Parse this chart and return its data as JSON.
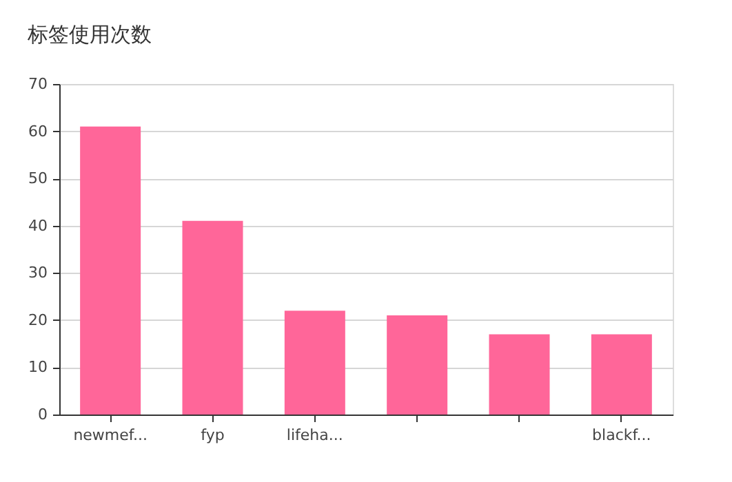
{
  "chart_data": {
    "type": "bar",
    "title": "标签使用次数",
    "categories": [
      "newmef...",
      "fyp",
      "lifeha...",
      null,
      null,
      "blackf..."
    ],
    "values": [
      61,
      41,
      22,
      21,
      17,
      17
    ],
    "color": "#ff6699",
    "ylim": [
      0,
      70
    ],
    "yticks": [
      0,
      10,
      20,
      30,
      40,
      50,
      60,
      70
    ],
    "grid": "y"
  }
}
